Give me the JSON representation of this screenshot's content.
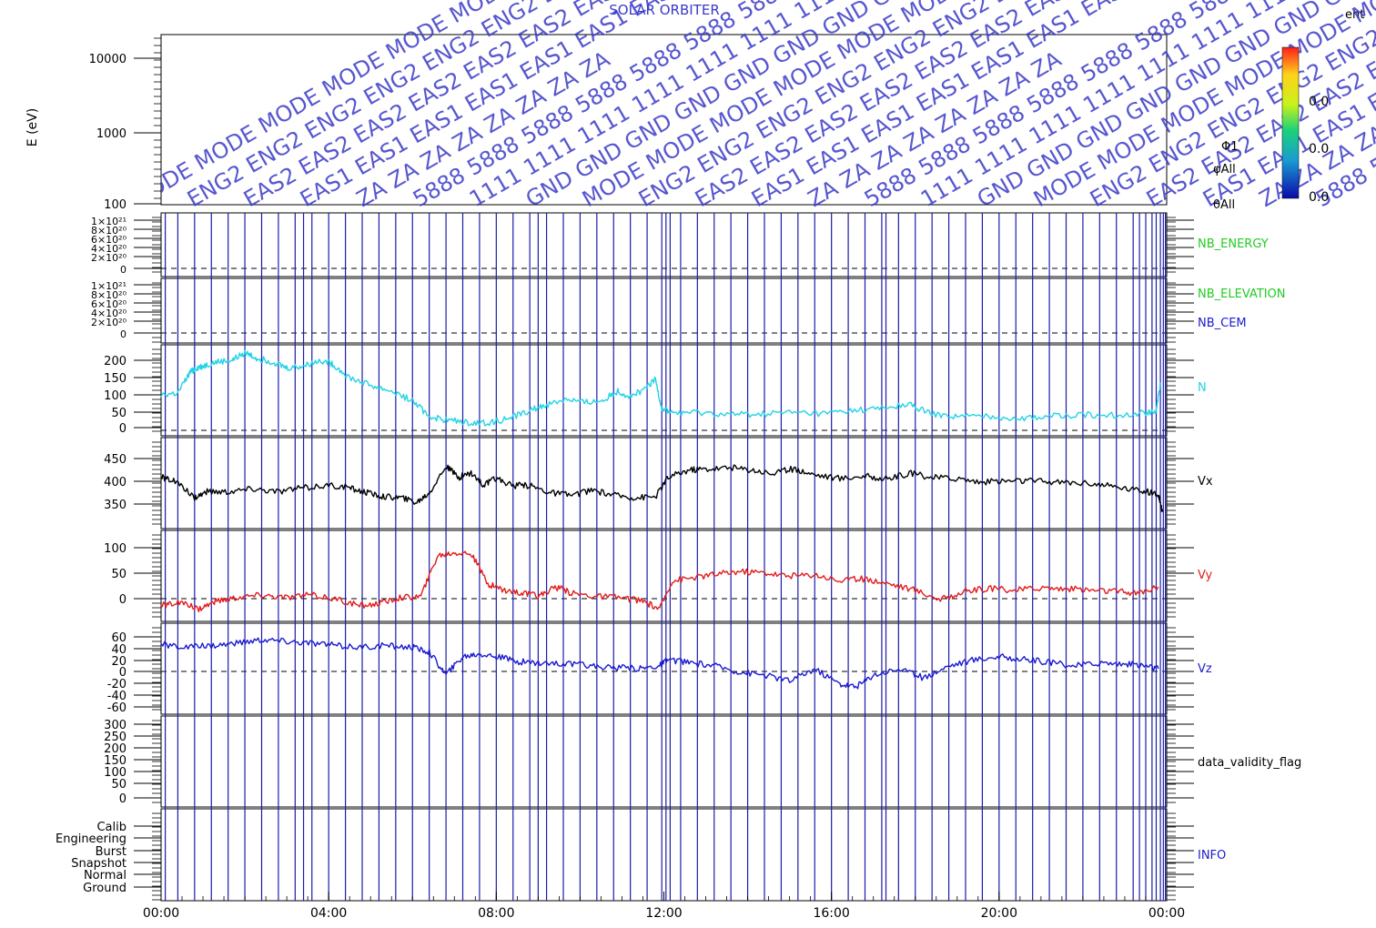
{
  "figure": {
    "title": "SOLAR ORBITER",
    "top_right_label": "ent",
    "colors": {
      "frame": "#000000",
      "marker": "#1c1ca8",
      "density": "#22d3e6",
      "vx": "#000000",
      "vy": "#e21b1b",
      "vz": "#1a1ad0",
      "nb_energy": "#22cc22",
      "nb_elevation": "#22cc22",
      "nb_cem": "#1a1ad0",
      "overlay_text": "#3a3ac8"
    }
  },
  "spectrogram": {
    "ylabel": "E (eV)",
    "ytick_labels": [
      "10000",
      "1000",
      "100"
    ],
    "side_labels": [
      "Φ1",
      "φAll",
      "θAll"
    ],
    "colorbar_labels": [
      "0.0",
      "0.0",
      "0.0"
    ],
    "overlay_tokens": [
      "MODE",
      "ENG2",
      "EAS2",
      "EAS1",
      "ZA",
      "5888",
      "1111",
      "GND"
    ]
  },
  "panels": {
    "nb_energy": {
      "label": "NB_ENERGY",
      "ytick_labels": [
        "1×10²¹",
        "8×10²⁰",
        "6×10²⁰",
        "4×10²⁰",
        "2×10²⁰",
        "0"
      ]
    },
    "nb_elevation": {
      "label": "NB_ELEVATION",
      "label2": "NB_CEM",
      "ytick_labels": [
        "1×10²¹",
        "8×10²⁰",
        "6×10²⁰",
        "4×10²⁰",
        "2×10²⁰",
        "0"
      ]
    },
    "density": {
      "label": "N",
      "ytick_labels": [
        "200",
        "150",
        "100",
        "50",
        "0"
      ]
    },
    "vx": {
      "label": "Vx",
      "ytick_labels": [
        "450",
        "400",
        "350"
      ]
    },
    "vy": {
      "label": "Vy",
      "ytick_labels": [
        "100",
        "50",
        "0"
      ]
    },
    "vz": {
      "label": "Vz",
      "ytick_labels": [
        "60",
        "40",
        "20",
        "0",
        "-20",
        "-40",
        "-60"
      ]
    },
    "validity": {
      "label": "data_validity_flag",
      "ytick_labels": [
        "300",
        "250",
        "200",
        "150",
        "100",
        "50",
        "0"
      ]
    },
    "info": {
      "label": "INFO",
      "ytick_labels": [
        "Calib",
        "Engineering",
        "Burst",
        "Snapshot",
        "Normal",
        "Ground"
      ]
    }
  },
  "x_axis": {
    "tick_labels": [
      "00:00",
      "04:00",
      "08:00",
      "12:00",
      "16:00",
      "20:00",
      "00:00"
    ]
  },
  "chart_data": {
    "type": "line",
    "x_unit": "hours since 00:00",
    "xlim": [
      0,
      24
    ],
    "x_ticks": [
      0,
      4,
      8,
      12,
      16,
      20,
      24
    ],
    "mode_change_markers_hours": [
      0.1,
      0.4,
      0.8,
      1.2,
      1.6,
      2.0,
      2.4,
      2.8,
      3.2,
      3.4,
      3.6,
      4.0,
      4.4,
      4.8,
      5.2,
      5.6,
      6.0,
      6.4,
      6.8,
      7.2,
      7.6,
      8.0,
      8.4,
      8.8,
      9.0,
      9.2,
      9.6,
      10.0,
      10.4,
      10.8,
      11.2,
      11.6,
      11.95,
      12.05,
      12.15,
      12.4,
      12.8,
      13.2,
      13.6,
      14.0,
      14.4,
      14.8,
      15.2,
      15.6,
      16.0,
      16.4,
      16.8,
      17.2,
      17.3,
      17.6,
      18.0,
      18.4,
      18.8,
      19.2,
      19.6,
      20.0,
      20.4,
      20.8,
      21.2,
      21.6,
      22.0,
      22.4,
      22.8,
      23.2,
      23.35,
      23.5,
      23.65,
      23.75,
      23.85,
      23.92,
      23.97
    ],
    "series": [
      {
        "name": "N",
        "ylim": [
          -5,
          230
        ],
        "x": [
          0,
          0.4,
          0.7,
          0.85,
          1.0,
          1.3,
          1.7,
          2.0,
          2.3,
          2.7,
          3.0,
          3.4,
          3.8,
          4.1,
          4.5,
          5.0,
          5.5,
          6.0,
          6.4,
          6.8,
          7.3,
          7.8,
          8.3,
          8.8,
          9.2,
          9.7,
          10.1,
          10.5,
          10.9,
          11.2,
          11.6,
          11.8,
          11.95,
          12.2,
          12.8,
          13.5,
          14.2,
          15.0,
          15.8,
          16.5,
          17.2,
          17.9,
          18.4,
          19.0,
          19.8,
          20.5,
          21.2,
          22.0,
          22.8,
          23.5,
          23.75,
          23.85
        ],
        "y": [
          100,
          105,
          160,
          170,
          175,
          185,
          190,
          210,
          195,
          185,
          170,
          175,
          190,
          180,
          145,
          125,
          110,
          85,
          45,
          35,
          30,
          28,
          40,
          60,
          75,
          90,
          80,
          85,
          110,
          95,
          120,
          140,
          65,
          55,
          55,
          50,
          50,
          55,
          52,
          60,
          65,
          75,
          50,
          45,
          45,
          40,
          45,
          50,
          48,
          55,
          60,
          130
        ]
      },
      {
        "name": "Vx",
        "ylim": [
          305,
          495
        ],
        "x": [
          0,
          0.3,
          0.8,
          1.1,
          1.6,
          2.2,
          2.8,
          3.4,
          4.0,
          4.5,
          4.9,
          5.3,
          5.7,
          6.1,
          6.4,
          6.8,
          7.1,
          7.4,
          7.7,
          8.0,
          8.4,
          8.8,
          9.3,
          9.8,
          10.3,
          10.8,
          11.3,
          11.8,
          12.1,
          12.6,
          13.0,
          13.6,
          14.1,
          14.6,
          15.1,
          15.6,
          16.2,
          16.8,
          17.3,
          17.9,
          18.4,
          19.0,
          19.6,
          20.2,
          20.8,
          21.5,
          22.2,
          22.8,
          23.4,
          23.8,
          23.9
        ],
        "y": [
          412,
          405,
          370,
          382,
          382,
          388,
          382,
          390,
          395,
          390,
          380,
          372,
          370,
          360,
          380,
          435,
          412,
          422,
          395,
          410,
          395,
          395,
          380,
          375,
          385,
          375,
          370,
          372,
          412,
          428,
          430,
          432,
          428,
          420,
          430,
          418,
          410,
          415,
          408,
          420,
          412,
          410,
          402,
          405,
          405,
          402,
          400,
          392,
          385,
          375,
          340
        ]
      },
      {
        "name": "Vy",
        "ylim": [
          -20,
          125
        ],
        "x": [
          0,
          0.4,
          0.9,
          1.3,
          1.8,
          2.4,
          3.0,
          3.6,
          4.2,
          4.7,
          5.2,
          5.7,
          6.2,
          6.6,
          7.0,
          7.4,
          7.8,
          8.2,
          8.6,
          9.0,
          9.4,
          9.8,
          10.4,
          11.0,
          11.5,
          11.9,
          12.2,
          12.7,
          13.2,
          13.8,
          14.4,
          15.0,
          15.6,
          16.2,
          16.8,
          17.4,
          18.0,
          18.6,
          19.2,
          19.8,
          20.4,
          21.0,
          21.6,
          22.2,
          22.8,
          23.3,
          23.8
        ],
        "y": [
          5,
          10,
          0,
          12,
          18,
          22,
          18,
          22,
          15,
          5,
          8,
          18,
          20,
          85,
          90,
          88,
          40,
          30,
          25,
          20,
          35,
          25,
          20,
          18,
          12,
          0,
          45,
          50,
          55,
          60,
          58,
          52,
          55,
          45,
          48,
          40,
          30,
          15,
          28,
          32,
          30,
          34,
          32,
          30,
          28,
          25,
          35
        ]
      },
      {
        "name": "Vz",
        "ylim": [
          -75,
          75
        ],
        "x": [
          0,
          0.6,
          1.2,
          1.8,
          2.4,
          3.0,
          3.6,
          4.2,
          4.8,
          5.4,
          6.0,
          6.4,
          6.8,
          7.2,
          7.6,
          8.0,
          8.5,
          9.0,
          9.6,
          10.2,
          10.8,
          11.4,
          11.9,
          12.1,
          12.6,
          13.2,
          13.8,
          14.4,
          15.0,
          15.6,
          16.2,
          16.6,
          17.0,
          17.6,
          18.2,
          18.8,
          19.4,
          20.0,
          20.6,
          21.2,
          21.8,
          22.4,
          23.0,
          23.5,
          23.8
        ],
        "y": [
          40,
          35,
          38,
          42,
          48,
          45,
          42,
          38,
          35,
          38,
          35,
          28,
          -10,
          20,
          25,
          20,
          12,
          10,
          8,
          5,
          2,
          0,
          5,
          15,
          10,
          5,
          -5,
          -10,
          -20,
          0,
          -25,
          -30,
          -10,
          0,
          -15,
          5,
          15,
          20,
          15,
          10,
          5,
          10,
          8,
          5,
          0
        ]
      }
    ]
  }
}
